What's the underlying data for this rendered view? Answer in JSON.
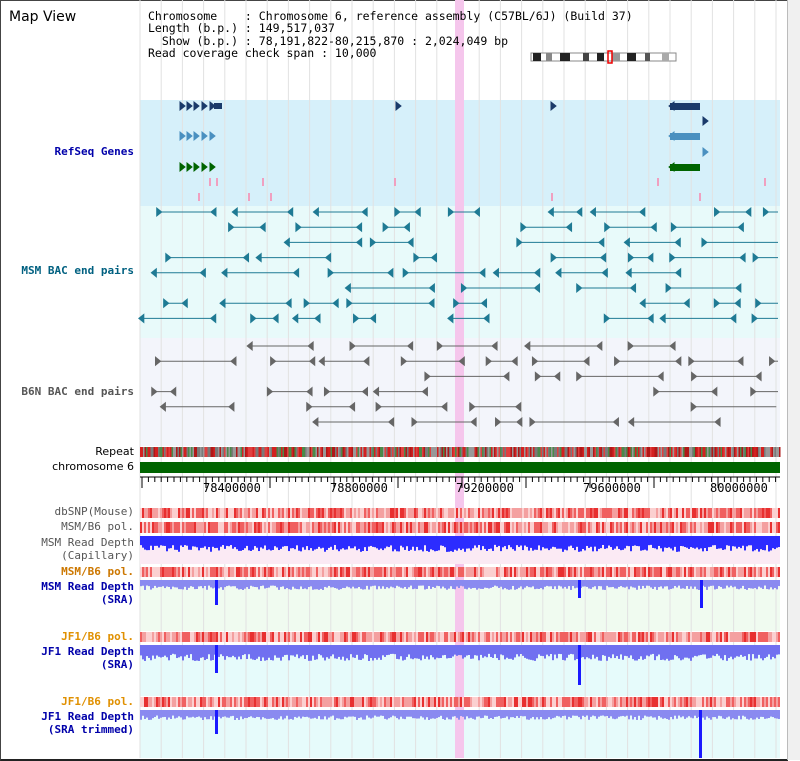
{
  "app": {
    "title": "Map View"
  },
  "info": {
    "chromosome_line": "Chromosome    : Chromosome 6, reference assembly (C57BL/6J) (Build 37)",
    "length_line": "Length (b.p.) : 149,517,037",
    "show_line": "  Show (b.p.) : 78,191,822-80,215,870 : 2,024,049 bp",
    "span_line": "Read coverage check span : 10,000"
  },
  "tracks": {
    "refseq": "RefSeq Genes",
    "msm_bac": "MSM BAC end pairs",
    "b6n_bac": "B6N BAC end pairs",
    "repeat": "Repeat",
    "chromosome": "chromosome 6",
    "dbsnp": "dbSNP(Mouse)",
    "msm_b6_pol_1": "MSM/B6 pol.",
    "msm_depth_cap_1": "MSM Read Depth",
    "msm_depth_cap_2": "(Capillary)",
    "msm_b6_pol_2": "MSM/B6 pol.",
    "msm_depth_sra_1": "MSM Read Depth",
    "msm_depth_sra_2": "(SRA)",
    "jf1_b6_pol_1": "JF1/B6 pol.",
    "jf1_depth_sra_1": "JF1 Read Depth",
    "jf1_depth_sra_2": "(SRA)",
    "jf1_b6_pol_2": "JF1/B6 pol.",
    "jf1_depth_trim_1": "JF1 Read Depth",
    "jf1_depth_trim_2": "(SRA trimmed)"
  },
  "ruler": {
    "ticks": [
      "78400000",
      "78800000",
      "79200000",
      "79600000",
      "80000000"
    ]
  },
  "colors": {
    "refseq_bg": "#d6f0fa",
    "msm_bac_bg": "#e8fafa",
    "b6n_bac_bg": "#f3f5fb",
    "refseq_label": "#0000aa",
    "msm_label": "#006080",
    "b6n_label": "#555555",
    "pol_label_msm": "#cc7700",
    "pol_label_jf1": "#e09000",
    "depth_label": "#0000aa",
    "chromosome_bar": "#006400",
    "highlight": "#f5c6ec"
  }
}
